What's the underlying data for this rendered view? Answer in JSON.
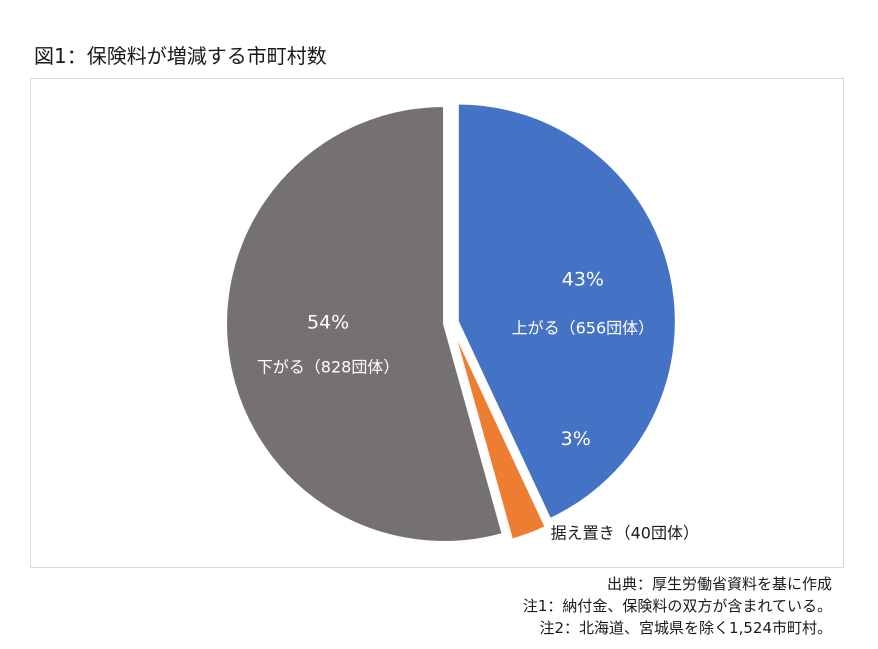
{
  "page": {
    "title": "図1：保険料が増減する市町村数"
  },
  "chart_data": {
    "type": "pie",
    "title": "図1：保険料が増減する市町村数",
    "slices": [
      {
        "label": "上がる（656団体）",
        "percent_label": "43%",
        "value": 656,
        "color": "#4472c4"
      },
      {
        "label": "据え置き（40団体）",
        "percent_label": "3%",
        "value": 40,
        "color": "#ed7d31"
      },
      {
        "label": "下がる（828団体）",
        "percent_label": "54%",
        "value": 828,
        "color": "#767171"
      }
    ],
    "start_angle_deg": 0,
    "direction": "clockwise",
    "exploded": true
  },
  "notes": {
    "source": "出典：厚生労働省資料を基に作成",
    "note1": "注1：納付金、保険料の双方が含まれている。",
    "note2": "注2：北海道、宮城県を除く1,524市町村。"
  }
}
